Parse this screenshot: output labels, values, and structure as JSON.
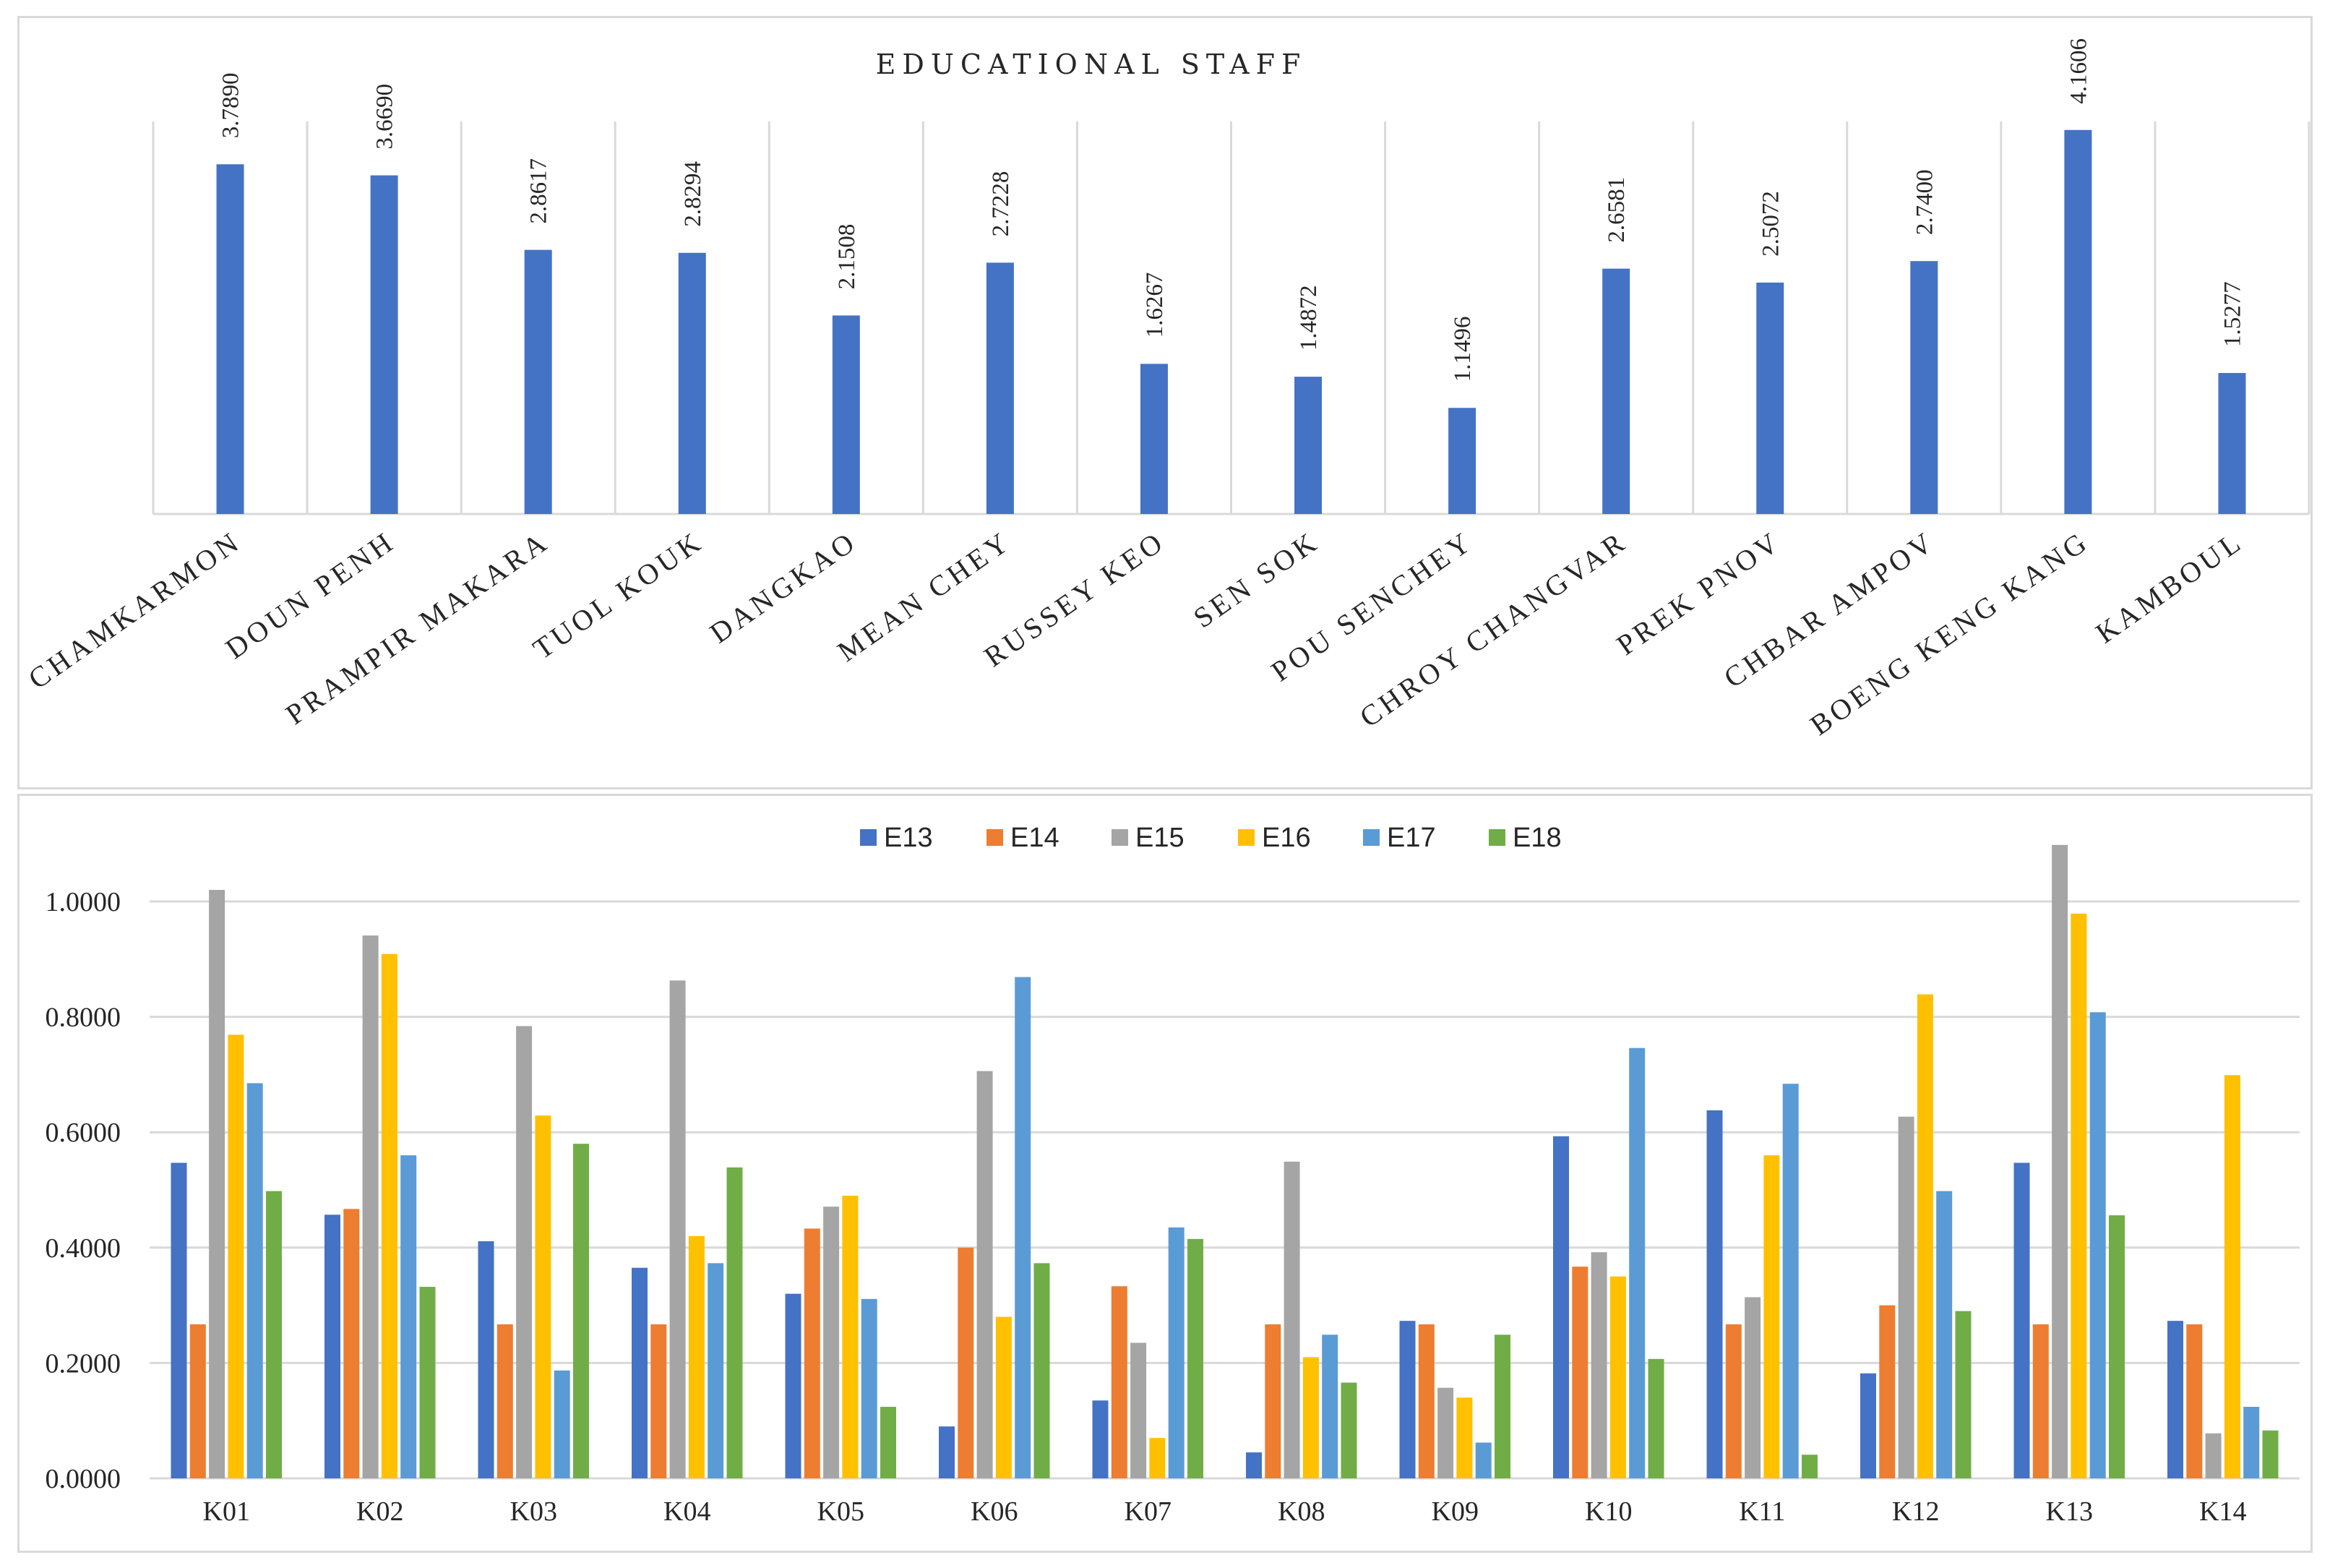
{
  "chart_data": [
    {
      "type": "bar",
      "title": "EDUCATIONAL STAFF",
      "categories": [
        "CHAMKARMON",
        "DOUN PENH",
        "PRAMPIR MAKARA",
        "TUOL KOUK",
        "DANGKAO",
        "MEAN CHEY",
        "RUSSEY KEO",
        "SEN SOK",
        "POU SENCHEY",
        "CHROY CHANGVAR",
        "PREK PNOV",
        "CHBAR AMPOV",
        "BOENG KENG KANG",
        "KAMBOUL"
      ],
      "values": [
        3.789,
        3.669,
        2.8617,
        2.8294,
        2.1508,
        2.7228,
        1.6267,
        1.4872,
        1.1496,
        2.6581,
        2.5072,
        2.74,
        4.1606,
        1.5277
      ],
      "value_labels": [
        "3.7890",
        "3.6690",
        "2.8617",
        "2.8294",
        "2.1508",
        "2.7228",
        "1.6267",
        "1.4872",
        "1.1496",
        "2.6581",
        "2.5072",
        "2.7400",
        "4.1606",
        "1.5277"
      ],
      "xlabel": "",
      "ylabel": "",
      "ylim": [
        0,
        4.3
      ],
      "grid": "vertical category separators",
      "color": "#4472c4"
    },
    {
      "type": "bar",
      "title": "",
      "categories": [
        "K01",
        "K02",
        "K03",
        "K04",
        "K05",
        "K06",
        "K07",
        "K08",
        "K09",
        "K10",
        "K11",
        "K12",
        "K13",
        "K14"
      ],
      "series": [
        {
          "name": "E13",
          "color": "#4472c4",
          "values": [
            0.547,
            0.457,
            0.411,
            0.365,
            0.32,
            0.09,
            0.135,
            0.045,
            0.273,
            0.593,
            0.638,
            0.182,
            0.547,
            0.273
          ]
        },
        {
          "name": "E14",
          "color": "#ed7d31",
          "values": [
            0.267,
            0.467,
            0.267,
            0.267,
            0.433,
            0.4,
            0.333,
            0.267,
            0.267,
            0.367,
            0.267,
            0.3,
            0.267,
            0.267
          ]
        },
        {
          "name": "E15",
          "color": "#a5a5a5",
          "values": [
            1.02,
            0.941,
            0.784,
            0.863,
            0.471,
            0.706,
            0.235,
            0.549,
            0.157,
            0.392,
            0.314,
            0.627,
            1.098,
            0.078
          ]
        },
        {
          "name": "E16",
          "color": "#ffc000",
          "values": [
            0.769,
            0.909,
            0.629,
            0.42,
            0.49,
            0.28,
            0.07,
            0.21,
            0.14,
            0.35,
            0.56,
            0.839,
            0.979,
            0.699
          ]
        },
        {
          "name": "E17",
          "color": "#5b9bd5",
          "values": [
            0.685,
            0.56,
            0.187,
            0.373,
            0.311,
            0.869,
            0.435,
            0.249,
            0.062,
            0.746,
            0.684,
            0.498,
            0.808,
            0.124
          ]
        },
        {
          "name": "E18",
          "color": "#70ad47",
          "values": [
            0.498,
            0.332,
            0.58,
            0.539,
            0.124,
            0.373,
            0.415,
            0.166,
            0.249,
            0.207,
            0.041,
            0.29,
            0.456,
            0.083
          ]
        }
      ],
      "yticks": [
        "0.0000",
        "0.2000",
        "0.4000",
        "0.6000",
        "0.8000",
        "1.0000"
      ],
      "ylim": [
        0,
        1.1
      ],
      "xlabel": "",
      "ylabel": "",
      "grid": "horizontal",
      "legend": "top-center"
    }
  ]
}
